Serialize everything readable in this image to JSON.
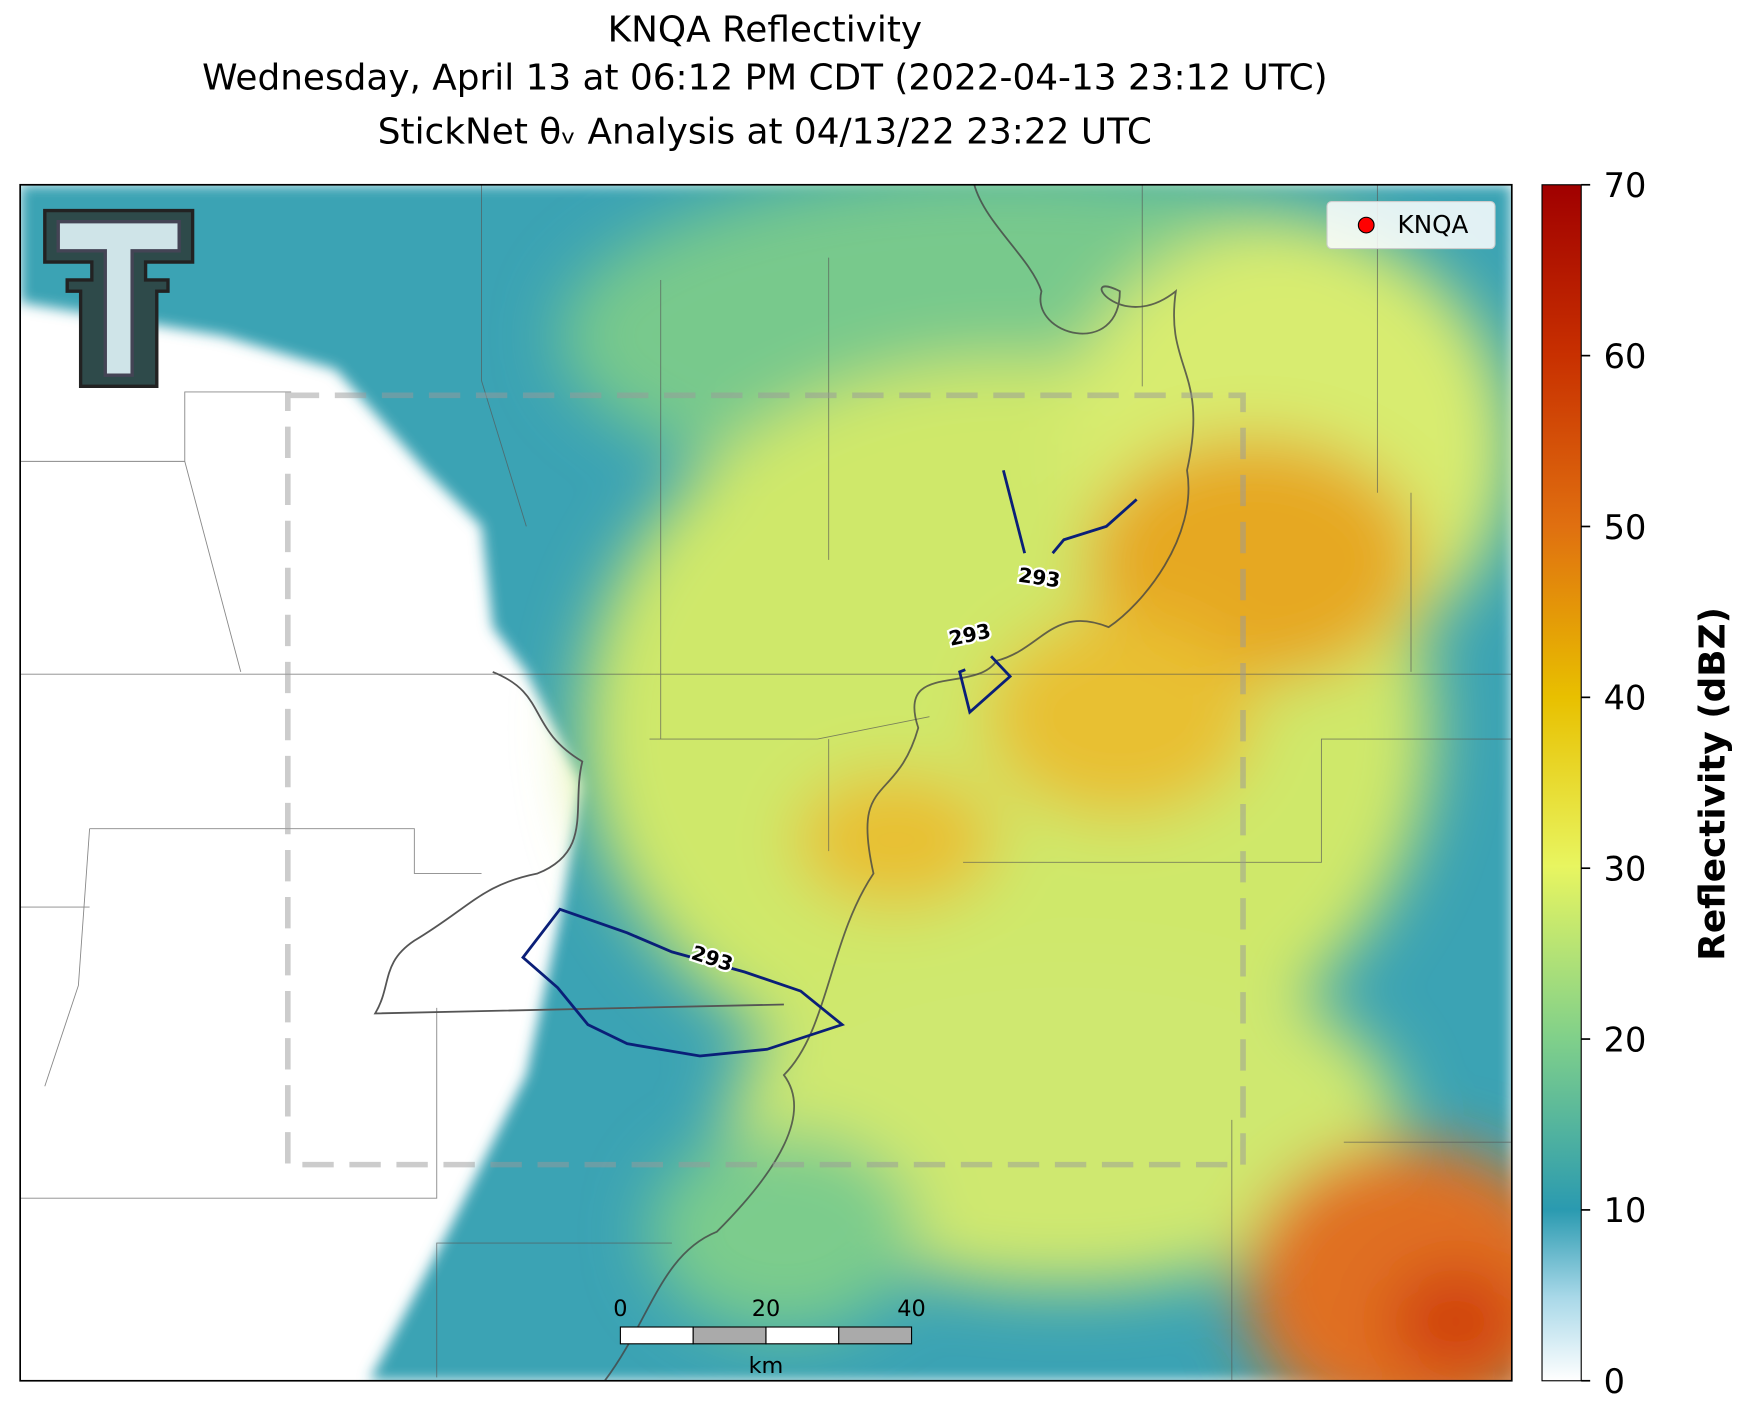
{
  "title": [
    "KNQA Reflectivity",
    "Wednesday, April 13 at 06:12 PM CDT (2022-04-13 23:12 UTC)",
    "StickNet θᵥ Analysis at 04/13/22 23:22 UTC"
  ],
  "legend": {
    "label": "KNQA",
    "color": "#ff0000"
  },
  "contour_level": 293,
  "scale_bar": {
    "ticks": [
      0,
      20,
      40
    ],
    "unit": "km"
  },
  "colorbar": {
    "label": "Reflectivity (dBZ)",
    "lim": [
      0,
      70
    ],
    "ticks": [
      0,
      10,
      20,
      30,
      40,
      50,
      60,
      70
    ]
  }
}
